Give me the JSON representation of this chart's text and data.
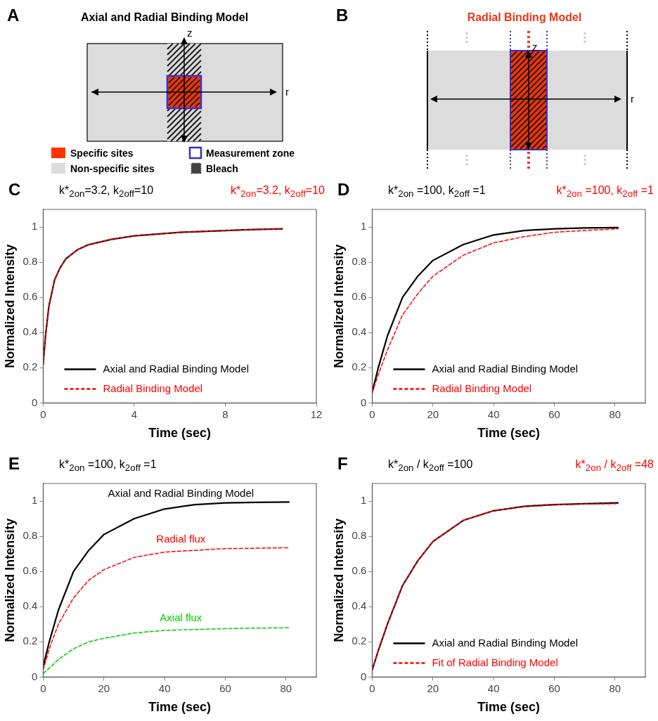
{
  "chart_data": [
    {
      "type": "other",
      "title": "Axial and Radial Binding Model",
      "annotations": [
        "A",
        "z",
        "r",
        "Specific sites",
        "Measurement zone",
        "Non-specific sites",
        "Bleach"
      ]
    },
    {
      "type": "other",
      "title": "Radial Binding Model",
      "annotations": [
        "B",
        "z",
        "r"
      ]
    },
    {
      "type": "line",
      "title": "k*$_{2on}$=3.2, k$_{2off}$=10",
      "subtitle": "k*$_{2on}$=3.2, k$_{2off}$=10",
      "annotations": [
        "C"
      ],
      "xlabel": "Time (sec)",
      "ylabel": "Normalized Intensity",
      "xlim": [
        0,
        12
      ],
      "xticks": [
        0,
        4,
        8,
        12
      ],
      "ylim": [
        0,
        1.1
      ],
      "yticks": [
        0,
        0.2,
        0.4,
        0.6,
        0.8,
        1
      ],
      "grid": false,
      "legend": "bottom",
      "marker": "none",
      "x": [
        0,
        0.1,
        0.25,
        0.5,
        0.75,
        1,
        1.5,
        2,
        3,
        4,
        5,
        6,
        7,
        8,
        9,
        10.5
      ],
      "series": [
        {
          "name": "Axial and Radial Binding Model",
          "color": "#000000",
          "line_style": "solid",
          "values": [
            0.22,
            0.38,
            0.55,
            0.7,
            0.77,
            0.82,
            0.87,
            0.9,
            0.93,
            0.95,
            0.96,
            0.97,
            0.975,
            0.98,
            0.985,
            0.99
          ]
        },
        {
          "name": "Radial Binding Model",
          "color": "#ff0000",
          "line_style": "dashed",
          "values": [
            0.22,
            0.38,
            0.55,
            0.7,
            0.77,
            0.82,
            0.87,
            0.9,
            0.93,
            0.95,
            0.96,
            0.97,
            0.975,
            0.98,
            0.985,
            0.99
          ]
        }
      ]
    },
    {
      "type": "line",
      "title": "k*$_{2on}$ =100, k$_{2off}$ =1",
      "subtitle": "k*$_{2on}$ =100, k$_{2off}$ =1",
      "annotations": [
        "D"
      ],
      "xlabel": "Time (sec)",
      "ylabel": "Normalized Intensity",
      "xlim": [
        0,
        90
      ],
      "xticks": [
        0,
        20,
        40,
        60,
        80
      ],
      "ylim": [
        0,
        1.1
      ],
      "yticks": [
        0,
        0.2,
        0.4,
        0.6,
        0.8,
        1
      ],
      "grid": false,
      "legend": "bottom",
      "marker": "none",
      "x": [
        0,
        2,
        5,
        10,
        15,
        20,
        30,
        40,
        50,
        60,
        70,
        81
      ],
      "series": [
        {
          "name": "Axial and Radial Binding Model",
          "color": "#000000",
          "line_style": "solid",
          "values": [
            0.06,
            0.2,
            0.38,
            0.6,
            0.72,
            0.81,
            0.9,
            0.955,
            0.98,
            0.99,
            0.995,
            0.997
          ]
        },
        {
          "name": "Radial Binding Model",
          "color": "#ff0000",
          "line_style": "dashed",
          "values": [
            0.06,
            0.16,
            0.3,
            0.5,
            0.62,
            0.72,
            0.84,
            0.91,
            0.945,
            0.97,
            0.98,
            0.99
          ]
        }
      ]
    },
    {
      "type": "line",
      "title": "k*$_{2on}$ =100, k$_{2off}$ =1",
      "annotations": [
        "E"
      ],
      "xlabel": "Time (sec)",
      "ylabel": "Normalized Intensity",
      "xlim": [
        0,
        90
      ],
      "xticks": [
        0,
        20,
        40,
        60,
        80
      ],
      "ylim": [
        0,
        1.1
      ],
      "yticks": [
        0,
        0.2,
        0.4,
        0.6,
        0.8,
        1
      ],
      "grid": false,
      "marker": "none",
      "x": [
        0,
        2,
        5,
        10,
        15,
        20,
        30,
        40,
        50,
        60,
        70,
        81
      ],
      "series": [
        {
          "name": "Axial and Radial Binding Model",
          "color": "#000000",
          "line_style": "solid",
          "values": [
            0.06,
            0.2,
            0.38,
            0.6,
            0.72,
            0.81,
            0.9,
            0.955,
            0.98,
            0.99,
            0.993,
            0.995
          ]
        },
        {
          "name": "Radial flux",
          "color": "#ff0000",
          "line_style": "dashed",
          "values": [
            0.04,
            0.16,
            0.3,
            0.45,
            0.55,
            0.61,
            0.68,
            0.71,
            0.72,
            0.73,
            0.732,
            0.735
          ]
        },
        {
          "name": "Axial flux",
          "color": "#00cc00",
          "line_style": "dashed",
          "values": [
            0.02,
            0.05,
            0.1,
            0.16,
            0.2,
            0.22,
            0.25,
            0.265,
            0.27,
            0.275,
            0.278,
            0.28
          ]
        }
      ]
    },
    {
      "type": "line",
      "title": "k*$_{2on}$ / k$_{2off}$ =100",
      "subtitle": "k*$_{2on}$ / k$_{2off}$ =48",
      "annotations": [
        "F"
      ],
      "xlabel": "Time (sec)",
      "ylabel": "Normalized Intensity",
      "xlim": [
        0,
        90
      ],
      "xticks": [
        0,
        20,
        40,
        60,
        80
      ],
      "ylim": [
        0,
        1.1
      ],
      "yticks": [
        0,
        0.2,
        0.4,
        0.6,
        0.8,
        1
      ],
      "grid": false,
      "legend": "bottom",
      "marker": "none",
      "x": [
        0,
        2,
        5,
        10,
        15,
        20,
        30,
        40,
        50,
        60,
        70,
        81
      ],
      "series": [
        {
          "name": "Axial and Radial Binding Model",
          "color": "#000000",
          "line_style": "solid",
          "values": [
            0.04,
            0.15,
            0.3,
            0.52,
            0.66,
            0.77,
            0.89,
            0.945,
            0.97,
            0.98,
            0.985,
            0.99
          ]
        },
        {
          "name": "Fit of Radial Binding Model",
          "color": "#ff0000",
          "line_style": "dashed",
          "values": [
            0.04,
            0.15,
            0.3,
            0.52,
            0.66,
            0.77,
            0.89,
            0.945,
            0.968,
            0.978,
            0.983,
            0.985
          ]
        }
      ]
    }
  ]
}
